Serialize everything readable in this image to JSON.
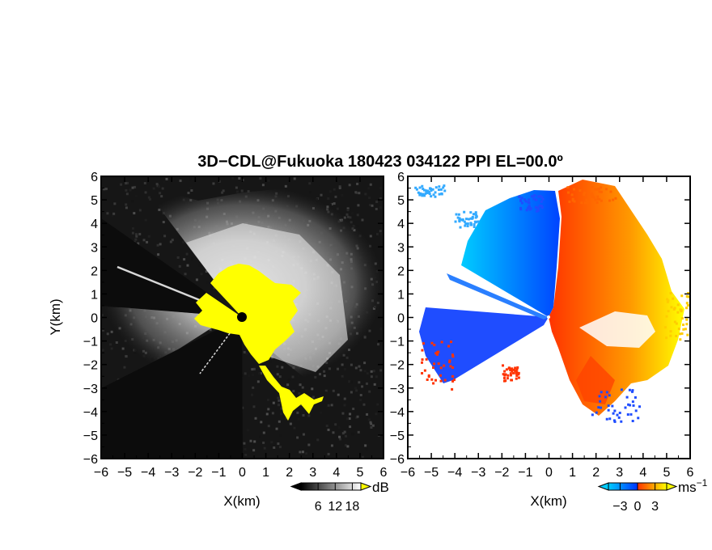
{
  "title": "3D−CDL@Fukuoka 180423 034122 PPI EL=00.0º",
  "chart_data": [
    {
      "type": "heatmap",
      "name": "reflectivity",
      "xlabel": "X(km)",
      "ylabel": "Y(km)",
      "xlim": [
        -6,
        6
      ],
      "ylim": [
        -6,
        6
      ],
      "xticks": [
        "−6",
        "−5",
        "−4",
        "−3",
        "−2",
        "−1",
        "0",
        "1",
        "2",
        "3",
        "4",
        "5",
        "6"
      ],
      "yticks": [
        "−6",
        "−5",
        "−4",
        "−3",
        "−2",
        "−1",
        "0",
        "1",
        "2",
        "3",
        "4",
        "5",
        "6"
      ],
      "colorbar": {
        "ticks": [
          "6",
          "12",
          "18"
        ],
        "tick_values": [
          6,
          12,
          18
        ],
        "unit": "dB",
        "range": [
          0,
          21
        ],
        "colors": [
          "#000000",
          "#ffffff"
        ],
        "saturation_color": "#ffff00"
      }
    },
    {
      "type": "heatmap",
      "name": "doppler_velocity",
      "xlabel": "X(km)",
      "ylabel": "",
      "xlim": [
        -6,
        6
      ],
      "ylim": [
        -6,
        6
      ],
      "xticks": [
        "−6",
        "−5",
        "−4",
        "−3",
        "−2",
        "−1",
        "0",
        "1",
        "2",
        "3",
        "4",
        "5",
        "6"
      ],
      "yticks": [
        "−6",
        "−5",
        "−4",
        "−3",
        "−2",
        "−1",
        "0",
        "1",
        "2",
        "3",
        "4",
        "5",
        "6"
      ],
      "colorbar": {
        "ticks": [
          "−3",
          "0",
          "3"
        ],
        "tick_values": [
          -3,
          0,
          3
        ],
        "unit": "ms",
        "unit_exp": "−1",
        "range": [
          -5,
          5
        ],
        "colors": [
          "#00ccff",
          "#0033ff",
          "#ff3300",
          "#ffff00"
        ]
      }
    }
  ]
}
